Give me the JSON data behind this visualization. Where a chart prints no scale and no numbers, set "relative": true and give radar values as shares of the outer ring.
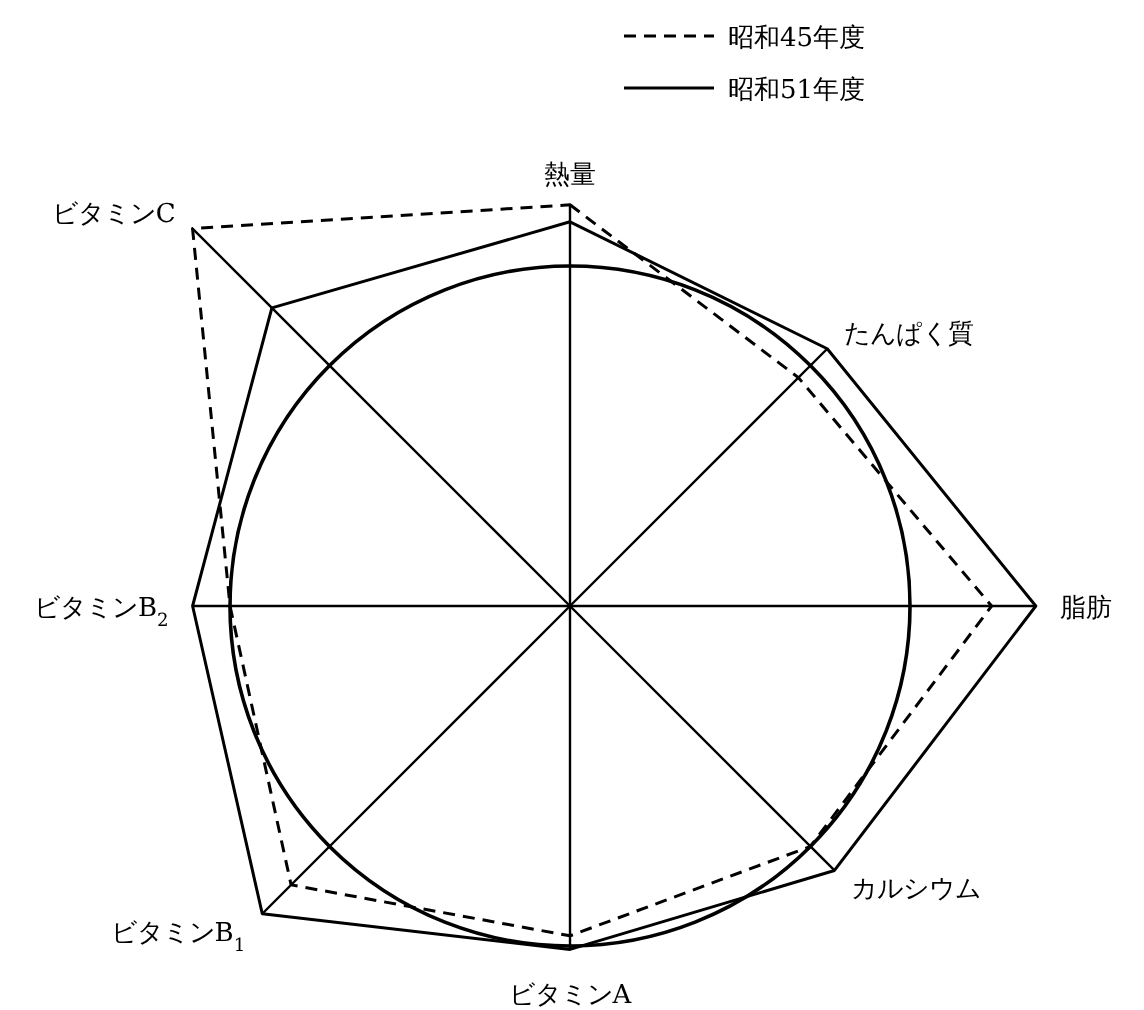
{
  "chart_data": {
    "type": "radar",
    "relative": true,
    "categories": [
      "熱量",
      "たんぱく質",
      "脂肪",
      "カルシウム",
      "ビタミンA",
      "ビタミンB$_{1}$",
      "ビタミンB$_{2}$",
      "ビタミンC"
    ],
    "series": [
      {
        "name": "昭和45年度",
        "color": "#000000",
        "line_style": "dashed",
        "values": [
          1.18,
          0.95,
          1.24,
          1.0,
          0.97,
          1.16,
          1.0,
          1.57
        ]
      },
      {
        "name": "昭和51年度",
        "color": "#000000",
        "line_style": "solid",
        "values": [
          1.13,
          1.07,
          1.37,
          1.1,
          1.01,
          1.28,
          1.11,
          1.24
        ]
      }
    ],
    "legend": "top",
    "marker": "none"
  }
}
